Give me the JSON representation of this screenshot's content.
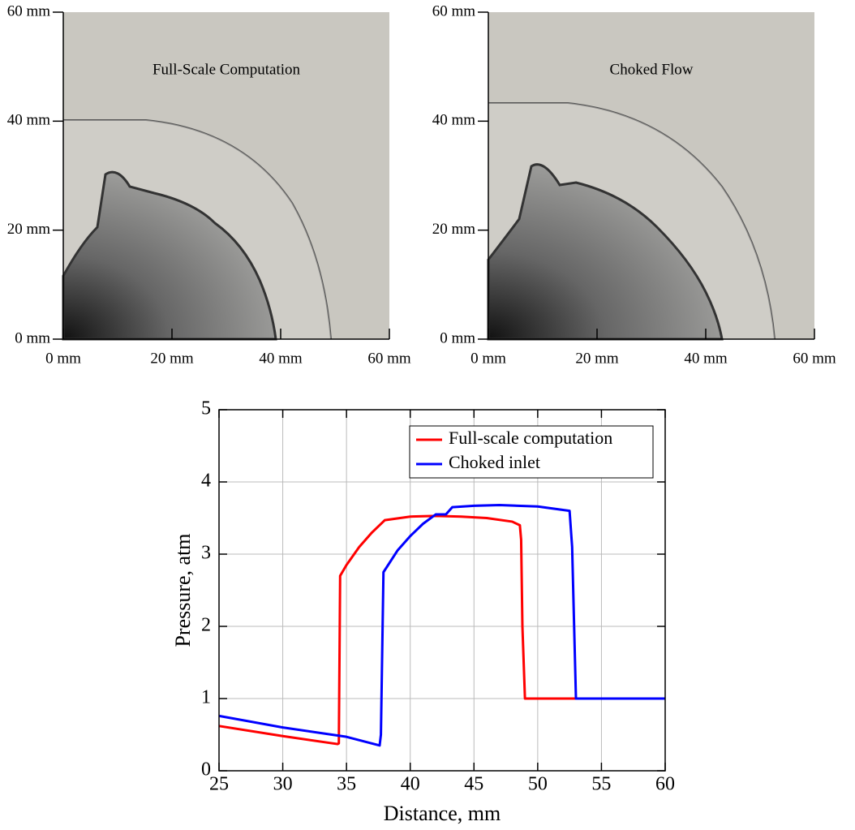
{
  "chart_data": [
    {
      "type": "image",
      "title": "Full-Scale Computation",
      "xlim": [
        0,
        60
      ],
      "ylim": [
        0,
        60
      ],
      "xticks": [
        {
          "value": 0,
          "label": "0 mm"
        },
        {
          "value": 20,
          "label": "20 mm"
        },
        {
          "value": 40,
          "label": "40 mm"
        },
        {
          "value": 60,
          "label": "60 mm"
        }
      ],
      "yticks": [
        {
          "value": 0,
          "label": "0 mm"
        },
        {
          "value": 20,
          "label": "20 mm"
        },
        {
          "value": 40,
          "label": "40 mm"
        },
        {
          "value": 60,
          "label": "60 mm"
        }
      ]
    },
    {
      "type": "image",
      "title": "Choked Flow",
      "xlim": [
        0,
        60
      ],
      "ylim": [
        0,
        60
      ],
      "xticks": [
        {
          "value": 0,
          "label": "0 mm"
        },
        {
          "value": 20,
          "label": "20 mm"
        },
        {
          "value": 40,
          "label": "40 mm"
        },
        {
          "value": 60,
          "label": "60 mm"
        }
      ],
      "yticks": [
        {
          "value": 0,
          "label": "0 mm"
        },
        {
          "value": 20,
          "label": "20 mm"
        },
        {
          "value": 40,
          "label": "40 mm"
        },
        {
          "value": 60,
          "label": "60 mm"
        }
      ]
    },
    {
      "type": "line",
      "x_label": "Distance, mm",
      "y_label": "Pressure, atm",
      "xlim": [
        25,
        60
      ],
      "ylim": [
        0,
        5
      ],
      "xticks": [
        25,
        30,
        35,
        40,
        45,
        50,
        55,
        60
      ],
      "yticks": [
        0,
        1,
        2,
        3,
        4,
        5
      ],
      "grid": true,
      "legend": "upper right",
      "series": [
        {
          "name": "Full-scale computation",
          "color": "#ff0000",
          "x": [
            25,
            30,
            34.3,
            34.4,
            34.5,
            35,
            36,
            37,
            38,
            40,
            42,
            44,
            46,
            48,
            48.6,
            48.7,
            48.8,
            49,
            53
          ],
          "values": [
            0.62,
            0.48,
            0.37,
            0.38,
            2.7,
            2.85,
            3.1,
            3.3,
            3.47,
            3.52,
            3.53,
            3.52,
            3.5,
            3.45,
            3.4,
            3.2,
            2.0,
            1,
            1
          ]
        },
        {
          "name": "Choked inlet",
          "color": "#0000ff",
          "x": [
            25,
            30,
            35,
            37.6,
            37.7,
            37.9,
            39,
            40,
            41,
            42,
            42.8,
            43.3,
            45,
            47,
            50,
            52.5,
            52.7,
            53,
            60
          ],
          "values": [
            0.76,
            0.6,
            0.47,
            0.35,
            0.5,
            2.75,
            3.05,
            3.25,
            3.42,
            3.55,
            3.55,
            3.65,
            3.67,
            3.68,
            3.66,
            3.6,
            3.1,
            1,
            1
          ]
        }
      ]
    }
  ]
}
